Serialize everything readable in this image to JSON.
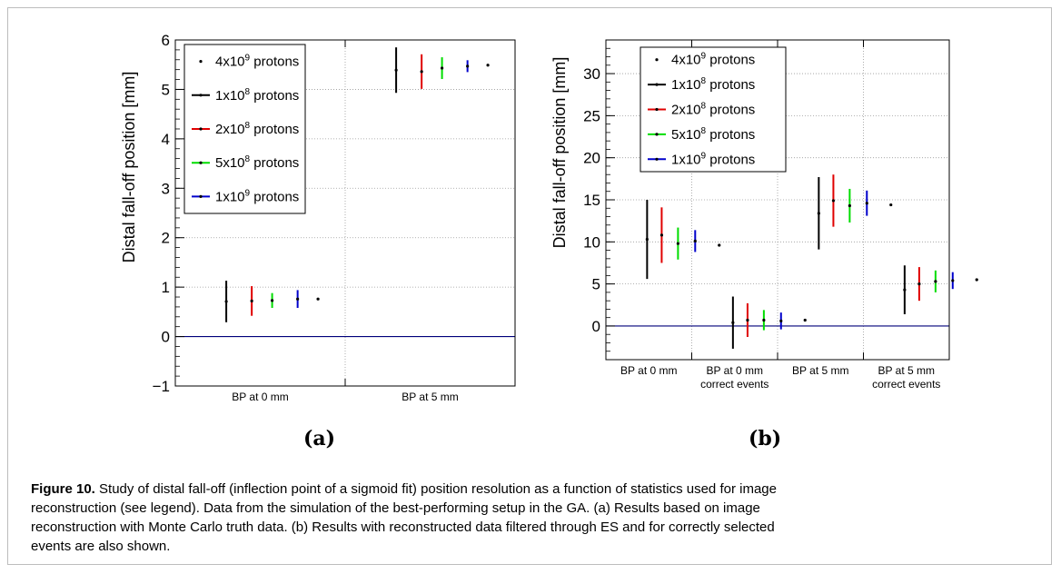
{
  "figure": {
    "label_a": "(a)",
    "label_b": "(b)",
    "caption_prefix": "Figure 10.",
    "caption_lines": [
      "Study of distal fall-off (inflection point of a sigmoid fit) position resolution as a function of statistics used for image",
      "reconstruction (see legend). Data from the simulation of the best-performing setup in the GA. (a) Results based on image",
      "reconstruction with Monte Carlo truth data. (b) Results with reconstructed data filtered through ES and for correctly selected",
      "events are also shown."
    ]
  },
  "colors": {
    "4e9": "#000000",
    "1e8": "#000000",
    "2e8": "#e00000",
    "5e8": "#00dd00",
    "1e9": "#0000cc",
    "zero_line": "#00007a",
    "grid": "#9a9a9a"
  },
  "chart_data": [
    {
      "type": "scatter",
      "ylabel": "Distal fall-off position [mm]",
      "xlabel": "",
      "ylim": [
        -1,
        6
      ],
      "yticks": [
        -1,
        0,
        1,
        2,
        3,
        4,
        5,
        6
      ],
      "categories": [
        "BP at 0 mm",
        "BP at 5 mm"
      ],
      "grid": true,
      "legend_position": "top-left",
      "series": [
        {
          "name": "4x10^9 protons",
          "key": "4e9",
          "values": [
            0.76,
            5.49
          ],
          "err": [
            0.0,
            0.0
          ]
        },
        {
          "name": "1x10^8 protons",
          "key": "1e8",
          "values": [
            0.71,
            5.39
          ],
          "err": [
            0.42,
            0.46
          ]
        },
        {
          "name": "2x10^8 protons",
          "key": "2e8",
          "values": [
            0.72,
            5.36
          ],
          "err": [
            0.3,
            0.35
          ]
        },
        {
          "name": "5x10^8 protons",
          "key": "5e8",
          "values": [
            0.73,
            5.43
          ],
          "err": [
            0.15,
            0.22
          ]
        },
        {
          "name": "1x10^9 protons",
          "key": "1e9",
          "values": [
            0.76,
            5.47
          ],
          "err": [
            0.18,
            0.12
          ]
        }
      ]
    },
    {
      "type": "scatter",
      "ylabel": "Distal fall-off position [mm]",
      "xlabel": "",
      "ylim": [
        -4,
        34
      ],
      "yticks": [
        0,
        5,
        10,
        15,
        20,
        25,
        30
      ],
      "categories": [
        [
          "BP at 0 mm"
        ],
        [
          "BP at 0 mm",
          "correct events"
        ],
        [
          "BP at 5 mm"
        ],
        [
          "BP at 5 mm",
          "correct events"
        ]
      ],
      "grid": true,
      "legend_position": "top-left",
      "series": [
        {
          "name": "4x10^9 protons",
          "key": "4e9",
          "values": [
            9.6,
            0.7,
            14.4,
            5.5
          ],
          "err": [
            0.0,
            0.0,
            0.0,
            0.0
          ]
        },
        {
          "name": "1x10^8 protons",
          "key": "1e8",
          "values": [
            10.3,
            0.4,
            13.4,
            4.3
          ],
          "err": [
            4.7,
            3.1,
            4.3,
            2.9
          ]
        },
        {
          "name": "2x10^8 protons",
          "key": "2e8",
          "values": [
            10.8,
            0.7,
            14.9,
            5.0
          ],
          "err": [
            3.3,
            2.0,
            3.1,
            2.0
          ]
        },
        {
          "name": "5x10^8 protons",
          "key": "5e8",
          "values": [
            9.8,
            0.7,
            14.3,
            5.3
          ],
          "err": [
            1.9,
            1.2,
            2.0,
            1.3
          ]
        },
        {
          "name": "1x10^9 protons",
          "key": "1e9",
          "values": [
            10.1,
            0.6,
            14.6,
            5.4
          ],
          "err": [
            1.3,
            1.0,
            1.5,
            1.0
          ]
        }
      ]
    }
  ]
}
